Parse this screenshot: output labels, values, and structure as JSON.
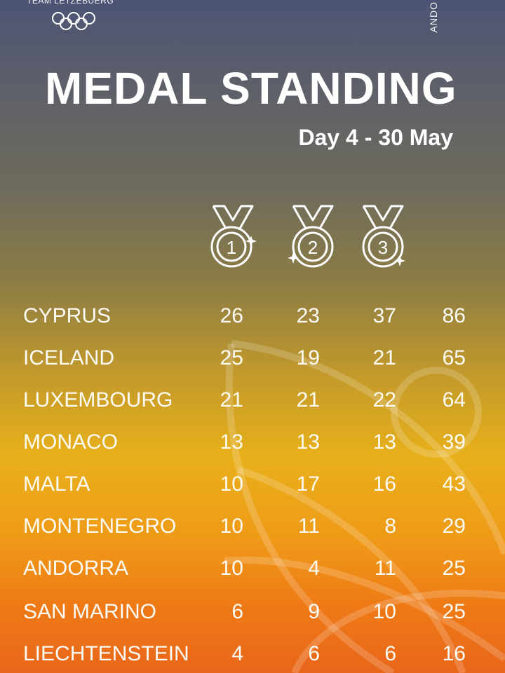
{
  "header": {
    "team_label": "TEAM LETZEBUERG",
    "side_text": "ANDO",
    "title": "MEDAL STANDING",
    "subtitle": "Day 4 - 30 May"
  },
  "medal_icons": [
    {
      "icon": "gold-medal-icon",
      "rank": "1"
    },
    {
      "icon": "silver-medal-icon",
      "rank": "2"
    },
    {
      "icon": "bronze-medal-icon",
      "rank": "3"
    }
  ],
  "standings": [
    {
      "country": "CYPRUS",
      "gold": "26",
      "silver": "23",
      "bronze": "37",
      "total": "86"
    },
    {
      "country": "ICELAND",
      "gold": "25",
      "silver": "19",
      "bronze": "21",
      "total": "65"
    },
    {
      "country": "LUXEMBOURG",
      "gold": "21",
      "silver": "21",
      "bronze": "22",
      "total": "64"
    },
    {
      "country": "MONACO",
      "gold": "13",
      "silver": "13",
      "bronze": "13",
      "total": "39"
    },
    {
      "country": "MALTA",
      "gold": "10",
      "silver": "17",
      "bronze": "16",
      "total": "43"
    },
    {
      "country": "MONTENEGRO",
      "gold": "10",
      "silver": "11",
      "bronze": "8",
      "total": "29"
    },
    {
      "country": "ANDORRA",
      "gold": "10",
      "silver": "4",
      "bronze": "11",
      "total": "25"
    },
    {
      "country": "SAN MARINO",
      "gold": "6",
      "silver": "9",
      "bronze": "10",
      "total": "25"
    },
    {
      "country": "LIECHTENSTEIN",
      "gold": "4",
      "silver": "6",
      "bronze": "6",
      "total": "16"
    }
  ],
  "colors": {
    "background_top": "#4d5475",
    "background_mid": "#e8b01a",
    "background_bottom": "#e9661a",
    "text": "#ffffff"
  }
}
